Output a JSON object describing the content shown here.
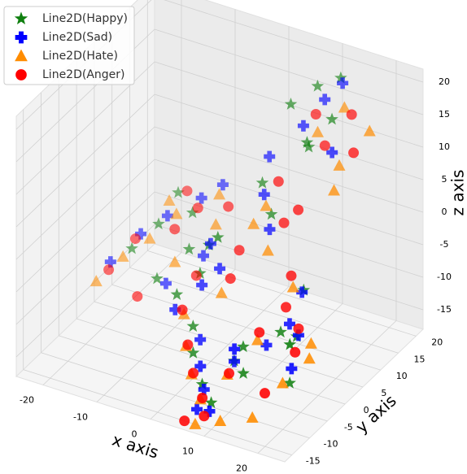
{
  "chart_data": {
    "type": "scatter3d",
    "xlabel": "x axis",
    "ylabel": "y axis",
    "zlabel": "z axis",
    "xlim": [
      -25,
      25
    ],
    "ylim": [
      -17,
      22
    ],
    "zlim": [
      -18,
      22
    ],
    "xticks": [
      -20,
      -10,
      0,
      10,
      20
    ],
    "yticks": [
      -15,
      -10,
      -5,
      0,
      5,
      10,
      15,
      20
    ],
    "zticks": [
      -15,
      -10,
      -5,
      0,
      5,
      10,
      15,
      20
    ],
    "grid": true,
    "legend": "upper left",
    "series": [
      {
        "name": "Line2D(Happy)",
        "color": "#0f7f0f",
        "marker": "star",
        "x": [
          -18,
          -15,
          -12,
          -10,
          -8,
          -14,
          -5,
          -2,
          0,
          2,
          5,
          8,
          10,
          12,
          15,
          18,
          20,
          5,
          8,
          10,
          12,
          3,
          6,
          -3,
          0,
          14,
          16,
          9,
          11,
          7
        ],
        "y": [
          5,
          8,
          3,
          10,
          6,
          12,
          -2,
          0,
          -5,
          -8,
          -10,
          -12,
          -6,
          -9,
          -3,
          -5,
          -8,
          15,
          18,
          12,
          16,
          10,
          8,
          4,
          2,
          5,
          0,
          14,
          20,
          -4
        ],
        "z": [
          -8,
          -5,
          -10,
          -3,
          -6,
          -2,
          -8,
          -5,
          -10,
          -12,
          -15,
          -16,
          -10,
          -12,
          -8,
          -14,
          -6,
          15,
          17,
          12,
          14,
          5,
          2,
          -3,
          0,
          -6,
          -10,
          10,
          18,
          -14
        ]
      },
      {
        "name": "Line2D(Sad)",
        "color": "#0000ff",
        "marker": "plus",
        "x": [
          -20,
          -17,
          -14,
          -11,
          -9,
          -6,
          -4,
          -1,
          2,
          4,
          6,
          9,
          11,
          13,
          16,
          19,
          8,
          10,
          12,
          14,
          4,
          7,
          -2,
          1,
          15,
          17,
          6,
          9,
          3,
          -7
        ],
        "y": [
          2,
          6,
          9,
          4,
          11,
          7,
          -4,
          -1,
          -6,
          -9,
          -11,
          -7,
          -10,
          -4,
          -2,
          -6,
          14,
          17,
          19,
          13,
          9,
          6,
          3,
          1,
          3,
          -1,
          -13,
          -14,
          12,
          14
        ],
        "z": [
          -9,
          -6,
          -4,
          -11,
          -1,
          -7,
          -9,
          -6,
          -11,
          -13,
          -15,
          -12,
          -8,
          -10,
          -7,
          -11,
          13,
          16,
          18,
          11,
          4,
          1,
          -2,
          -4,
          -5,
          -9,
          -17,
          -16,
          8,
          0
        ]
      },
      {
        "name": "Line2D(Hate)",
        "color": "#ff8c00",
        "marker": "triangle",
        "x": [
          -22,
          -19,
          -16,
          -13,
          -10,
          -7,
          -3,
          0,
          3,
          6,
          9,
          12,
          15,
          18,
          21,
          10,
          13,
          16,
          19,
          5,
          8,
          -5,
          2,
          14,
          20,
          7,
          11,
          -15,
          4,
          17
        ],
        "y": [
          1,
          4,
          7,
          10,
          5,
          13,
          -3,
          -7,
          -10,
          -12,
          -9,
          -5,
          -11,
          -7,
          -4,
          15,
          18,
          12,
          16,
          8,
          4,
          9,
          0,
          2,
          -2,
          -15,
          -14,
          11,
          6,
          9
        ],
        "z": [
          -12,
          -9,
          -7,
          -4,
          -8,
          -1,
          -10,
          -12,
          -14,
          -16,
          -13,
          -9,
          -17,
          -13,
          -10,
          12,
          15,
          10,
          14,
          3,
          -1,
          -3,
          -7,
          -4,
          -9,
          -18,
          -17,
          -3,
          1,
          8
        ]
      },
      {
        "name": "Line2D(Anger)",
        "color": "#ff0000",
        "marker": "circle",
        "x": [
          -21,
          -18,
          -15,
          -12,
          -9,
          -6,
          -2,
          1,
          4,
          7,
          10,
          13,
          16,
          19,
          9,
          12,
          15,
          18,
          6,
          9,
          -4,
          3,
          13,
          17,
          5,
          8,
          -13,
          2,
          11,
          14
        ],
        "y": [
          3,
          6,
          2,
          8,
          10,
          5,
          -5,
          -8,
          -11,
          -13,
          -10,
          -6,
          -9,
          -5,
          16,
          14,
          17,
          13,
          10,
          7,
          11,
          1,
          3,
          -1,
          -15,
          -14,
          13,
          5,
          8,
          0
        ],
        "z": [
          -11,
          -7,
          -13,
          -5,
          -2,
          -9,
          -8,
          -11,
          -13,
          -15,
          -12,
          -7,
          -14,
          -9,
          14,
          11,
          15,
          12,
          6,
          2,
          -1,
          -5,
          -3,
          -8,
          -18,
          -17,
          -2,
          -3,
          4,
          -6
        ]
      }
    ]
  }
}
